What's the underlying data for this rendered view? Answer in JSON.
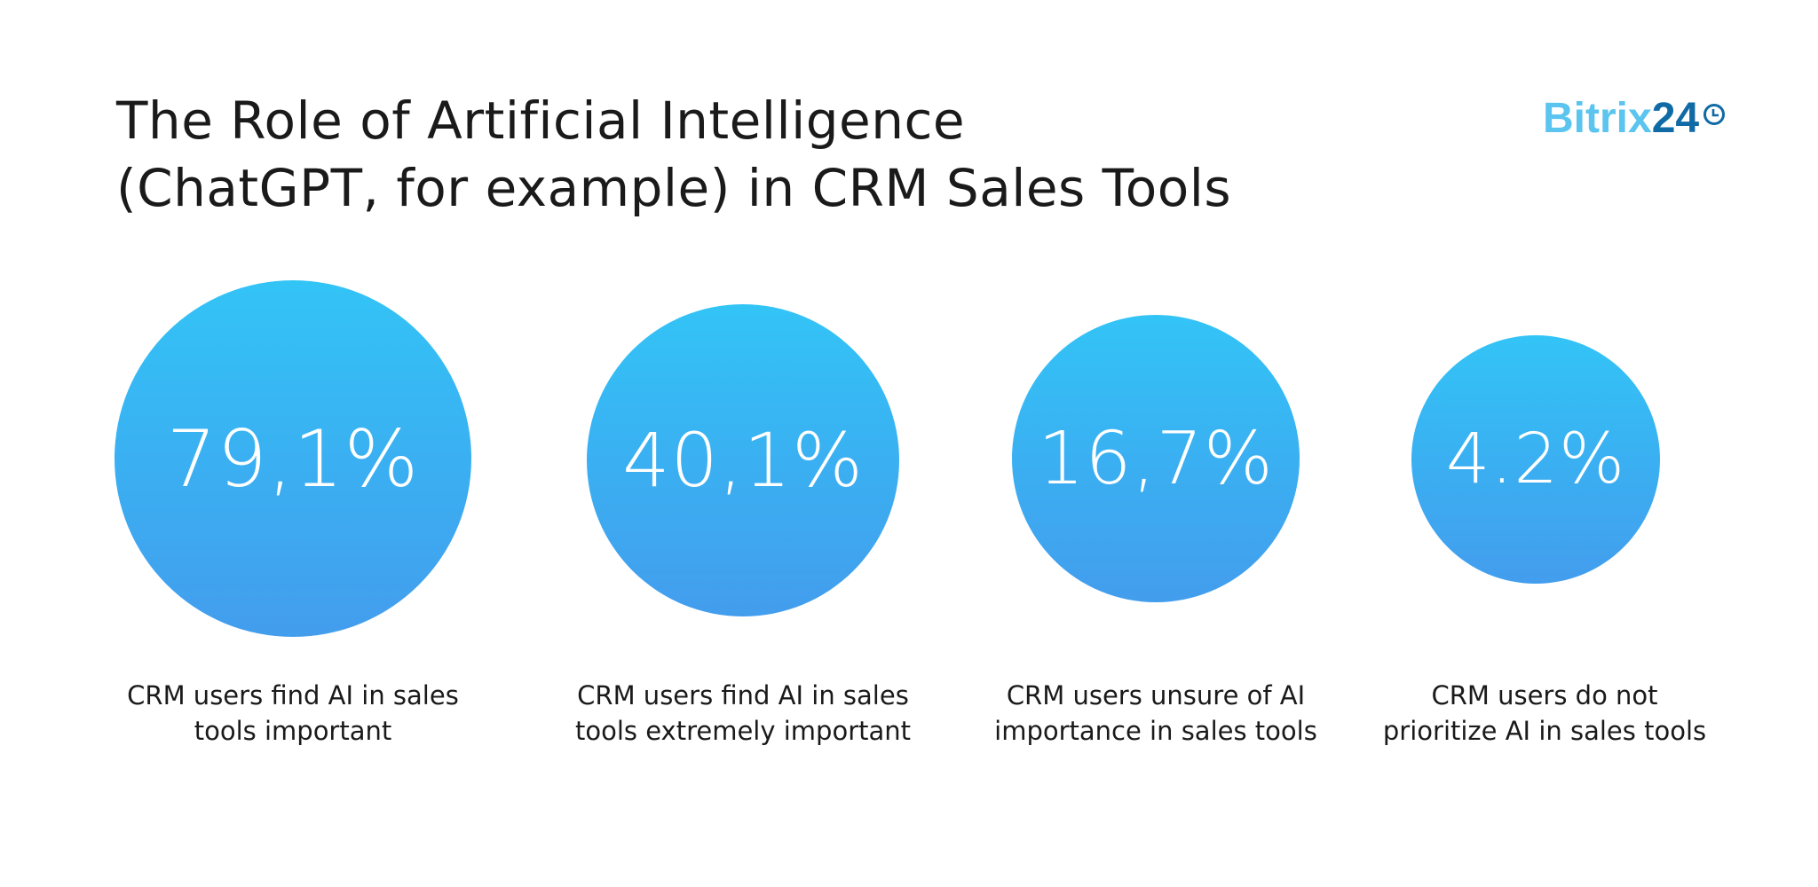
{
  "title": [
    "The Role of Artificial Intelligence",
    "(ChatGPT, for example) in CRM Sales Tools"
  ],
  "logo": {
    "text": "Bitrix",
    "number": "24",
    "icon": "clock-icon",
    "colors": {
      "text": "#5bc4ef",
      "number": "#0f6aa5"
    }
  },
  "chart_data": {
    "type": "bubble",
    "title": "The Role of Artificial Intelligence (ChatGPT, for example) in CRM Sales Tools",
    "unit": "%",
    "gradient": [
      "#33c4f6",
      "#439ded"
    ],
    "items": [
      {
        "value": 79.1,
        "display": "79,1%",
        "label": "CRM users find AI in sales tools important"
      },
      {
        "value": 40.1,
        "display": "40,1%",
        "label": "CRM users find AI in sales tools extremely important"
      },
      {
        "value": 16.7,
        "display": "16,7%",
        "label": "CRM users unsure of AI importance in sales tools"
      },
      {
        "value": 4.2,
        "display": "4.2%",
        "label": "CRM users do not prioritize AI in sales tools"
      }
    ]
  }
}
